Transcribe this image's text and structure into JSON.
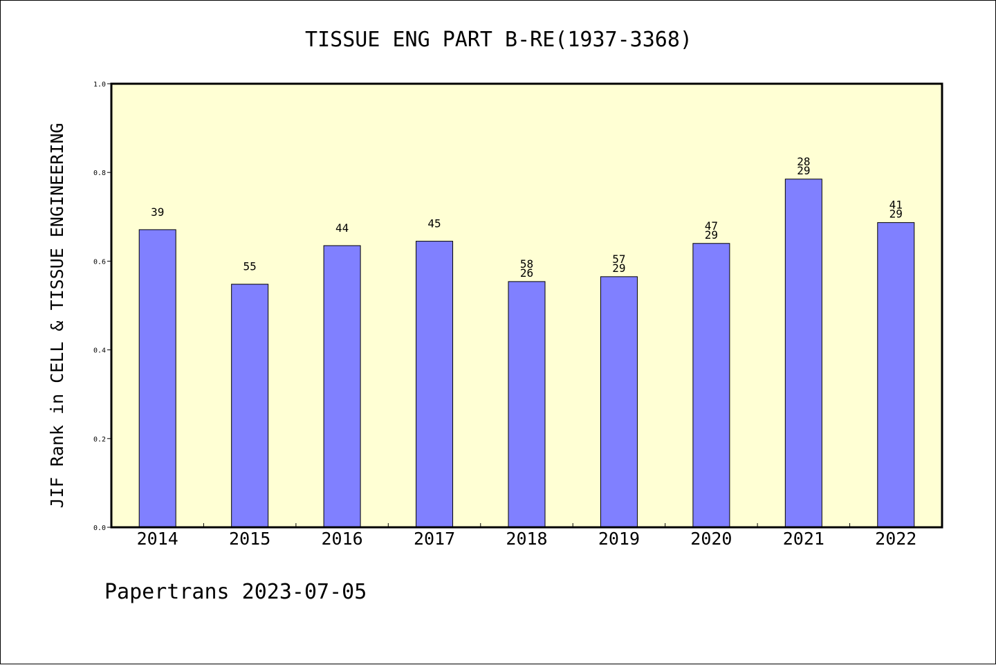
{
  "chart_data": {
    "type": "bar",
    "title": "TISSUE ENG PART B-RE(1937-3368)",
    "xlabel": "",
    "ylabel": "JIF Rank in CELL & TISSUE ENGINEERING",
    "categories": [
      "2014",
      "2015",
      "2016",
      "2017",
      "2018",
      "2019",
      "2020",
      "2021",
      "2022"
    ],
    "values": [
      0.671,
      0.548,
      0.635,
      0.645,
      0.554,
      0.565,
      0.64,
      0.785,
      0.687
    ],
    "bar_labels": [
      [
        "39"
      ],
      [
        "55"
      ],
      [
        "44"
      ],
      [
        "45"
      ],
      [
        "58",
        "26"
      ],
      [
        "57",
        "29"
      ],
      [
        "47",
        "29"
      ],
      [
        "28",
        "29"
      ],
      [
        "41",
        "29"
      ]
    ],
    "ylim": [
      0.0,
      1.0
    ],
    "yticks": [
      "0.0",
      "0.2",
      "0.4",
      "0.6",
      "0.8",
      "1.0"
    ],
    "grid": false,
    "legend": "none",
    "colors": {
      "bar": "#8080ff",
      "plot_background": "#ffffd4",
      "axis": "#000000"
    }
  },
  "footer": "Papertrans 2023-07-05"
}
